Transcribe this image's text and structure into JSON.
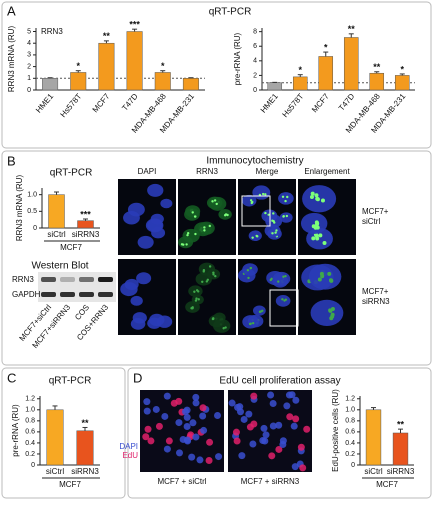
{
  "panel_labels": [
    "A",
    "B",
    "C",
    "D"
  ],
  "panel_A_title": "qRT-PCR",
  "chart_data": [
    {
      "type": "bar",
      "ylabel": "RRN3 mRNA (RU)",
      "inset_label": "RRN3",
      "categories": [
        "HME1",
        "Hs578T",
        "MCF7",
        "T47D",
        "MDA-MB-468",
        "MDA-MB-231"
      ],
      "values": [
        1,
        1.5,
        4,
        5,
        1.5,
        1
      ],
      "errors": [
        0.05,
        0.15,
        0.2,
        0.2,
        0.15,
        0.05
      ],
      "annotations": [
        null,
        "*",
        "**",
        "***",
        "*",
        null
      ],
      "colors": [
        "#a6a6a6",
        "#f39a1e",
        "#f39a1e",
        "#f39a1e",
        "#f39a1e",
        "#f39a1e"
      ],
      "reference_line": 1,
      "ylim": [
        0,
        5.3
      ],
      "yticks": [
        0,
        1,
        2,
        3,
        4,
        5
      ]
    },
    {
      "type": "bar",
      "ylabel": "pre-rRNA (RU)",
      "categories": [
        "HME1",
        "Hs578T",
        "MCF7",
        "T47D",
        "MDA-MB-468",
        "MDA-MB-231"
      ],
      "values": [
        1,
        1.8,
        4.6,
        7.2,
        2.3,
        2.0
      ],
      "errors": [
        0.05,
        0.3,
        0.6,
        0.5,
        0.2,
        0.2
      ],
      "annotations": [
        null,
        "*",
        "*",
        "**",
        "**",
        "*"
      ],
      "colors": [
        "#a6a6a6",
        "#f39a1e",
        "#f39a1e",
        "#f39a1e",
        "#f39a1e",
        "#f39a1e"
      ],
      "reference_line": 1,
      "ylim": [
        0,
        8.5
      ],
      "yticks": [
        0,
        2,
        4,
        6,
        8
      ]
    },
    {
      "type": "bar",
      "title": "qRT-PCR",
      "ylabel": "RRN3 mRNA (RU)",
      "categories": [
        "siCtrl",
        "siRRN3"
      ],
      "group_label": "MCF7",
      "values": [
        1.0,
        0.22
      ],
      "errors": [
        0.08,
        0.05
      ],
      "annotations": [
        null,
        "***"
      ],
      "colors": [
        "#f7a823",
        "#e8541e"
      ],
      "ylim": [
        0,
        1.2
      ],
      "yticks": [
        0,
        0.5,
        {
          "value": 1,
          "label": "1.0"
        }
      ]
    },
    {
      "type": "bar",
      "title": "qRT-PCR",
      "ylabel": "pre-rRNA (RU)",
      "categories": [
        "siCtrl",
        "siRRN3"
      ],
      "group_label": "MCF7",
      "values": [
        1.0,
        0.62
      ],
      "errors": [
        0.07,
        0.06
      ],
      "annotations": [
        null,
        "**"
      ],
      "colors": [
        "#f7a823",
        "#e8541e"
      ],
      "ylim": [
        0,
        1.25
      ],
      "yticks": [
        0,
        0.2,
        0.4,
        0.6,
        0.8,
        {
          "value": 1,
          "label": "1.0"
        },
        1.2
      ]
    },
    {
      "type": "bar",
      "ylabel": "EdU-positive cells (RU)",
      "categories": [
        "siCtrl",
        "siRRN3"
      ],
      "group_label": "MCF7",
      "values": [
        1.0,
        0.58
      ],
      "errors": [
        0.04,
        0.07
      ],
      "annotations": [
        null,
        "**"
      ],
      "colors": [
        "#f7a823",
        "#e8541e"
      ],
      "ylim": [
        0,
        1.25
      ],
      "yticks": [
        0,
        0.2,
        0.4,
        0.6,
        0.8,
        {
          "value": 1,
          "label": "1.0"
        },
        1.2
      ]
    }
  ],
  "western_blot": {
    "title": "Western Blot",
    "rows": [
      "RRN3",
      "GAPDH"
    ],
    "lanes": [
      "MCF7+siCtrl",
      "MCF7+siRRN3",
      "COS",
      "COS+RRN3"
    ]
  },
  "immunocytochemistry": {
    "title": "Immunocytochemistry",
    "columns": [
      "DAPI",
      "RRN3",
      "Merge",
      "Enlargement"
    ],
    "rows": [
      [
        "MCF7+",
        "siCtrl"
      ],
      [
        "MCF7+",
        "siRRN3"
      ]
    ]
  },
  "edu_assay": {
    "title": "EdU cell proliferation assay",
    "images": [
      "MCF7 + siCtrl",
      "MCF7 + siRRN3"
    ],
    "stain_legend": [
      {
        "label": "DAPI",
        "color": "#3a4fd0"
      },
      {
        "label": "EdU",
        "color": "#e0206a"
      }
    ]
  }
}
